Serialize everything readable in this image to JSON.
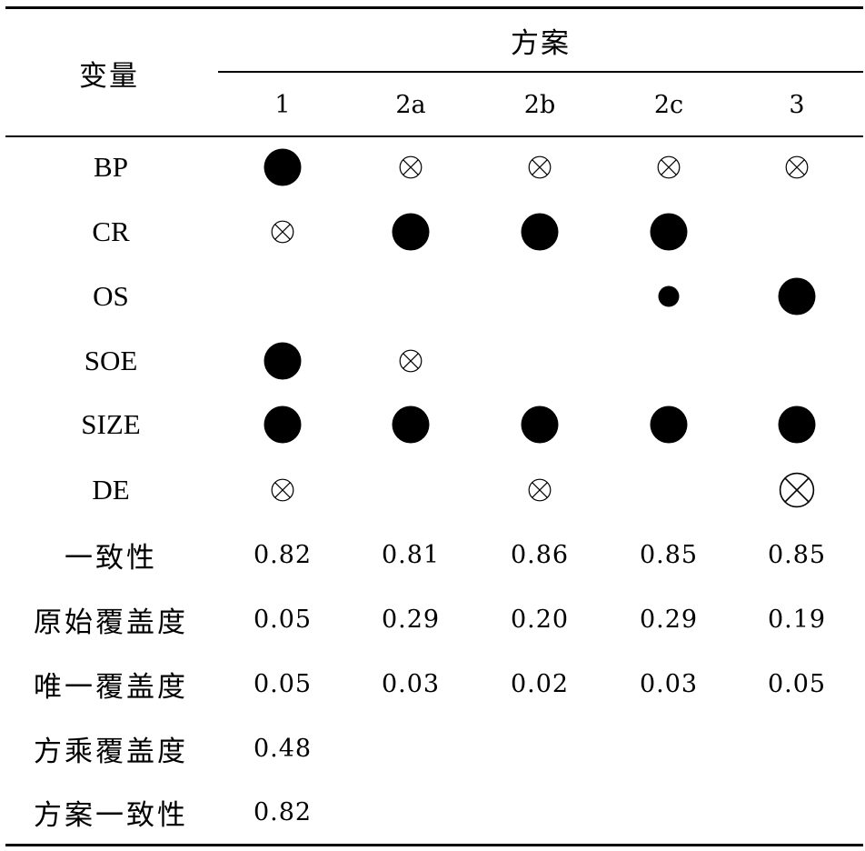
{
  "table": {
    "row_header": "变量",
    "group_header": "方案",
    "columns": [
      "1",
      "2a",
      "2b",
      "2c",
      "3"
    ],
    "rows": [
      {
        "label": "BP",
        "cells": [
          "core_present",
          "peripheral_absent",
          "peripheral_absent",
          "peripheral_absent",
          "peripheral_absent"
        ]
      },
      {
        "label": "CR",
        "cells": [
          "peripheral_absent",
          "core_present",
          "core_present",
          "core_present",
          ""
        ]
      },
      {
        "label": "OS",
        "cells": [
          "",
          "",
          "",
          "peripheral_present",
          "core_present"
        ]
      },
      {
        "label": "SOE",
        "cells": [
          "core_present",
          "peripheral_absent",
          "",
          "",
          ""
        ]
      },
      {
        "label": "SIZE",
        "cells": [
          "core_present",
          "core_present",
          "core_present",
          "core_present",
          "core_present"
        ]
      },
      {
        "label": "DE",
        "cells": [
          "peripheral_absent",
          "",
          "peripheral_absent",
          "",
          "core_absent"
        ]
      }
    ],
    "stats": [
      {
        "label": "一致性",
        "values": [
          "0.82",
          "0.81",
          "0.86",
          "0.85",
          "0.85"
        ]
      },
      {
        "label": "原始覆盖度",
        "values": [
          "0.05",
          "0.29",
          "0.20",
          "0.29",
          "0.19"
        ]
      },
      {
        "label": "唯一覆盖度",
        "values": [
          "0.05",
          "0.03",
          "0.02",
          "0.03",
          "0.05"
        ]
      },
      {
        "label": "方乘覆盖度",
        "values": [
          "0.48",
          "",
          "",
          "",
          ""
        ]
      },
      {
        "label": "方案一致性",
        "values": [
          "0.82",
          "",
          "",
          "",
          ""
        ]
      }
    ]
  }
}
